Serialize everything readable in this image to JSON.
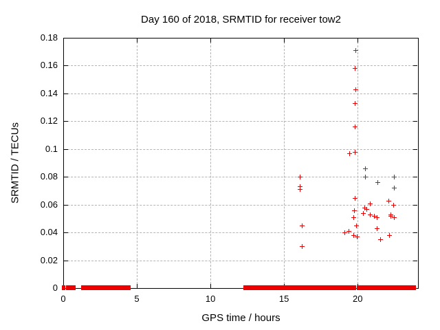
{
  "chart_data": {
    "type": "scatter",
    "title": "Day 160 of 2018, SRMTID for receiver tow2",
    "xlabel": "GPS time / hours",
    "ylabel": "SRMTID / TECUs",
    "xlim": [
      0,
      24.1
    ],
    "ylim": [
      0,
      0.18
    ],
    "xticks": [
      0,
      5,
      10,
      15,
      20
    ],
    "yticks": [
      0,
      0.02,
      0.04,
      0.06,
      0.08,
      0.1,
      0.12,
      0.14,
      0.16,
      0.18
    ],
    "grid": true,
    "legend": "none",
    "marker": "plus",
    "marker_color": "#ee0000",
    "series": [
      {
        "name": "SRMTID",
        "points": [
          [
            16.05,
            0.08
          ],
          [
            16.05,
            0.073
          ],
          [
            16.05,
            0.071
          ],
          [
            16.2,
            0.045
          ],
          [
            16.2,
            0.03
          ],
          [
            19.1,
            0.04
          ],
          [
            19.4,
            0.041
          ],
          [
            19.45,
            0.097
          ],
          [
            19.7,
            0.051
          ],
          [
            19.7,
            0.038
          ],
          [
            19.75,
            0.056
          ],
          [
            19.8,
            0.158
          ],
          [
            19.8,
            0.133
          ],
          [
            19.8,
            0.116
          ],
          [
            19.8,
            0.098
          ],
          [
            19.8,
            0.065
          ],
          [
            19.85,
            0.171
          ],
          [
            19.85,
            0.143
          ],
          [
            19.9,
            0.045
          ],
          [
            19.95,
            0.037
          ],
          [
            20.35,
            0.054
          ],
          [
            20.45,
            0.058
          ],
          [
            20.5,
            0.086
          ],
          [
            20.5,
            0.08
          ],
          [
            20.6,
            0.057
          ],
          [
            20.85,
            0.061
          ],
          [
            20.85,
            0.053
          ],
          [
            21.1,
            0.052
          ],
          [
            21.3,
            0.051
          ],
          [
            21.3,
            0.043
          ],
          [
            21.35,
            0.076
          ],
          [
            21.55,
            0.035
          ],
          [
            22.1,
            0.063
          ],
          [
            22.15,
            0.038
          ],
          [
            22.25,
            0.053
          ],
          [
            22.25,
            0.052
          ],
          [
            22.4,
            0.06
          ],
          [
            22.45,
            0.08
          ],
          [
            22.45,
            0.072
          ],
          [
            22.45,
            0.051
          ]
        ]
      }
    ],
    "zero_value_markers_hours": [
      0.0,
      0.28,
      0.4,
      0.58,
      0.7
    ],
    "zero_value_segments_hours": [
      [
        1.3,
        1.78
      ],
      [
        1.82,
        2.3
      ],
      [
        2.38,
        2.52
      ],
      [
        2.6,
        2.72
      ],
      [
        2.78,
        3.0
      ],
      [
        3.05,
        3.25
      ],
      [
        3.33,
        3.45
      ],
      [
        3.5,
        3.7
      ],
      [
        3.78,
        3.92
      ],
      [
        4.05,
        4.2
      ],
      [
        4.28,
        4.5
      ],
      [
        12.35,
        13.2
      ],
      [
        13.38,
        13.87
      ],
      [
        13.99,
        14.62
      ],
      [
        14.68,
        15.09
      ],
      [
        15.28,
        16.0
      ],
      [
        16.1,
        16.92
      ],
      [
        17.0,
        18.95
      ],
      [
        19.15,
        19.82
      ],
      [
        20.05,
        22.47
      ],
      [
        22.56,
        23.45
      ],
      [
        23.6,
        23.88
      ]
    ]
  }
}
